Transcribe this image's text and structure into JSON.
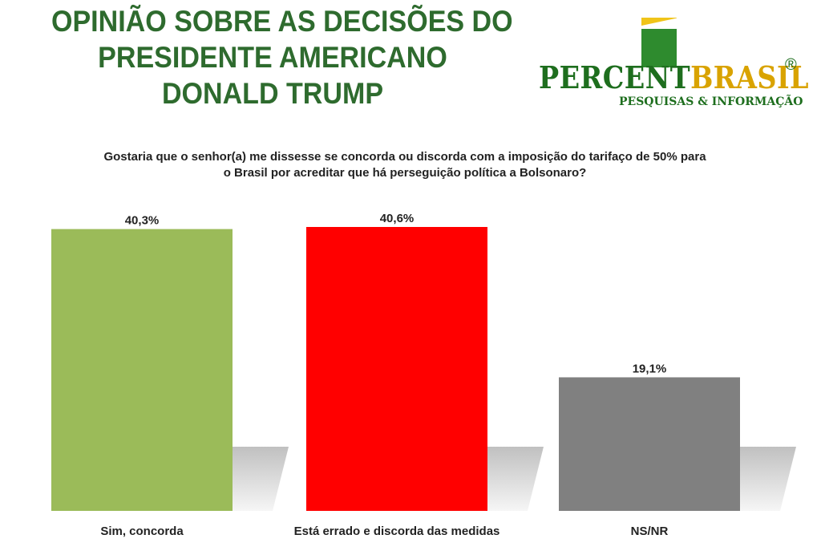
{
  "header": {
    "title_lines": [
      "OPINIÃO SOBRE AS DECISÕES DO",
      "PRESIDENTE AMERICANO",
      "DONALD TRUMP"
    ]
  },
  "logo": {
    "name_part1": "PERCENT",
    "name_part2": "BRASIL",
    "registered": "®",
    "tagline": "PESQUISAS & INFORMAÇÃO"
  },
  "question": {
    "line1": "Gostaria que o senhor(a) me dissesse se concorda ou discorda com a imposição do tarifaço de 50% para",
    "line2": "o Brasil por acreditar que há perseguição política a Bolsonaro?"
  },
  "colors": {
    "title": "#2e6b2e",
    "sim": "#9bbb59",
    "errado": "#ff0000",
    "nsnr": "#808080"
  },
  "chart_data": {
    "type": "bar",
    "categories": [
      "Sim, concorda",
      "Está errado e discorda das medidas",
      "NS/NR"
    ],
    "values": [
      40.3,
      40.6,
      19.1
    ],
    "value_labels": [
      "40,3%",
      "40,6%",
      "19,1%"
    ],
    "colors": [
      "#9bbb59",
      "#ff0000",
      "#808080"
    ],
    "ylim": [
      0,
      40.6
    ],
    "grid": false,
    "legend": "none"
  }
}
